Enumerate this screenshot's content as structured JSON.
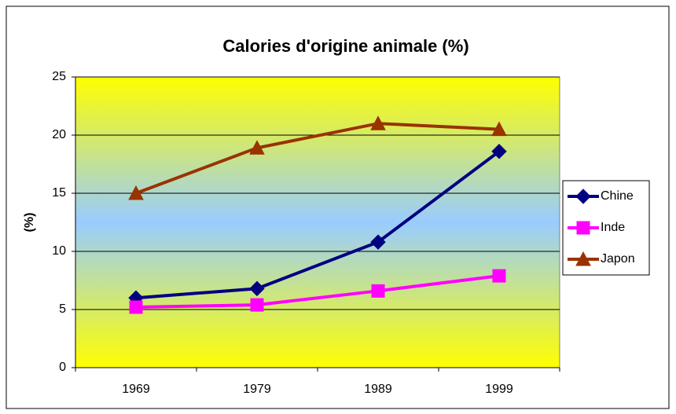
{
  "chart_data": {
    "type": "line",
    "title": "Calories d'origine animale (%)",
    "y_label": "(%)",
    "categories": [
      "1969",
      "1979",
      "1989",
      "1999"
    ],
    "series": [
      {
        "name": "Chine",
        "color": "#000080",
        "marker": "diamond",
        "values": [
          6.0,
          6.8,
          10.8,
          18.6
        ]
      },
      {
        "name": "Inde",
        "color": "#ff00ff",
        "marker": "square",
        "values": [
          5.2,
          5.4,
          6.6,
          7.9
        ]
      },
      {
        "name": "Japon",
        "color": "#993300",
        "marker": "triangle",
        "values": [
          15.0,
          18.9,
          21.0,
          20.5
        ]
      }
    ],
    "ylim": [
      0,
      25
    ],
    "yticks": [
      0,
      5,
      10,
      15,
      20,
      25
    ],
    "grid": true,
    "legend": "right"
  }
}
